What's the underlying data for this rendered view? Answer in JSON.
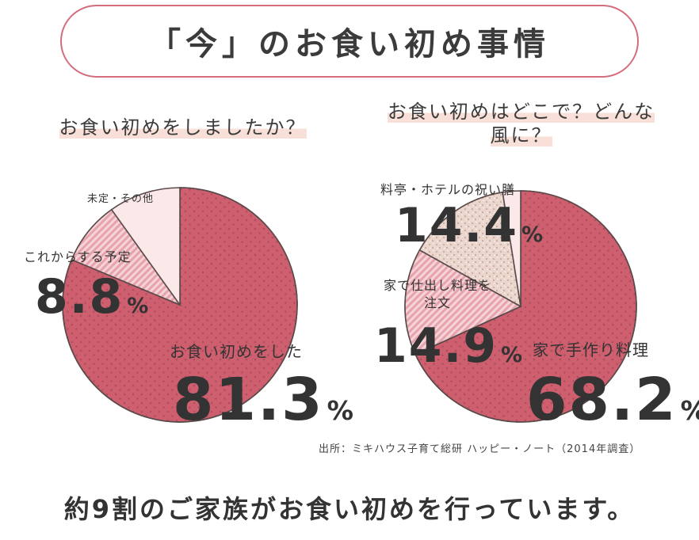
{
  "title": "「今」のお食い初め事情",
  "source": "出所：ミキハウス子育て総研 ハッピー・ノート（2014年調査）",
  "footer": "約9割のご家族がお食い初めを行っています。",
  "colors": {
    "main_pink": "#cd5f6f",
    "light_pink": "#eab0b8",
    "pale_pink": "#fbe9ea",
    "beige": "#ead6cd",
    "border": "#d36d7c"
  },
  "chart_data": [
    {
      "type": "pie",
      "title": "お食い初めをしましたか？",
      "slices": [
        {
          "label": "お食い初めをした",
          "value": 81.3,
          "display": "81.3",
          "unit": "%"
        },
        {
          "label": "これからする予定",
          "value": 8.8,
          "display": "8.8",
          "unit": "%"
        },
        {
          "label": "未定・その他",
          "value": 9.9,
          "display": "",
          "unit": ""
        }
      ]
    },
    {
      "type": "pie",
      "title": "お食い初めはどこで？どんな風に？",
      "slices": [
        {
          "label": "家で手作り料理",
          "value": 68.2,
          "display": "68.2",
          "unit": "%"
        },
        {
          "label": "家で仕出し料理を注文",
          "value": 14.9,
          "display": "14.9",
          "unit": "%"
        },
        {
          "label": "料亭・ホテルの祝い膳",
          "value": 14.4,
          "display": "14.4",
          "unit": "%"
        },
        {
          "label": "",
          "value": 2.5,
          "display": "",
          "unit": ""
        }
      ]
    }
  ]
}
